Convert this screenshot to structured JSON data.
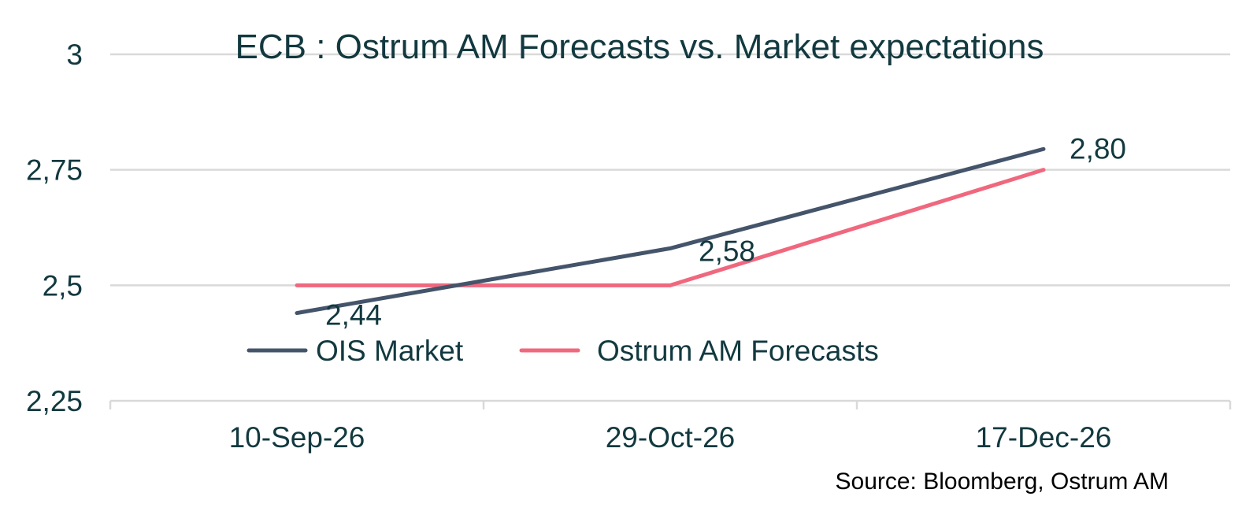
{
  "chart_data": {
    "type": "line",
    "title": "ECB :  Ostrum AM Forecasts vs. Market expectations",
    "categories": [
      "10-Sep-26",
      "29-Oct-26",
      "17-Dec-26"
    ],
    "y_ticks": [
      "2,25",
      "2,5",
      "2,75",
      "3"
    ],
    "y_tick_values": [
      2.25,
      2.5,
      2.75,
      3
    ],
    "ylim": [
      2.25,
      3
    ],
    "grid": true,
    "legend_placement": "bottom-left inside plot",
    "series": [
      {
        "name": "OIS Market",
        "values": [
          2.44,
          2.58,
          2.795
        ],
        "data_labels": [
          "2,44",
          "2,58",
          "2,80"
        ],
        "color": "#44546a"
      },
      {
        "name": "Ostrum AM Forecasts",
        "values": [
          2.5,
          2.5,
          2.75
        ],
        "data_labels": [
          "",
          "",
          ""
        ],
        "color": "#f0687e"
      }
    ],
    "source": "Source: Bloomberg, Ostrum AM"
  }
}
